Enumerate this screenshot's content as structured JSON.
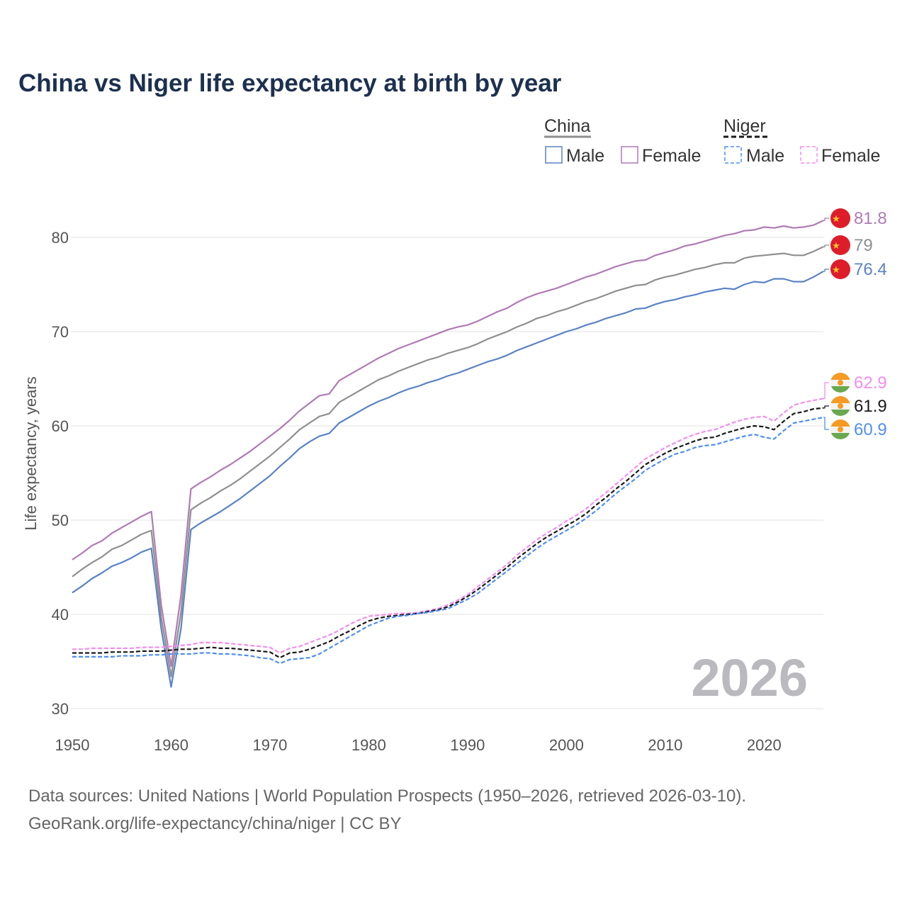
{
  "chart_data": {
    "type": "line",
    "title": "China vs Niger life expectancy at birth by year",
    "ylabel": "Life expectancy, years",
    "xlabel": "",
    "xlim": [
      1950,
      2026
    ],
    "ylim": [
      30,
      82
    ],
    "x_ticks": [
      1950,
      1960,
      1970,
      1980,
      1990,
      2000,
      2010,
      2020
    ],
    "y_ticks": [
      30,
      40,
      50,
      60,
      70,
      80
    ],
    "grid": true,
    "year_watermark": "2026",
    "legend": {
      "placement": "top-right",
      "groups": [
        {
          "name": "China",
          "items": [
            "Male",
            "Female"
          ]
        },
        {
          "name": "Niger",
          "items": [
            "Male",
            "Female"
          ]
        }
      ]
    },
    "x_start": 1950,
    "series": [
      {
        "name": "China Female",
        "color": "#b07ab5",
        "dashed": false,
        "end_label": "81.8",
        "flag": "china",
        "values": [
          45.8,
          46.5,
          47.3,
          47.8,
          48.6,
          49.2,
          49.8,
          50.4,
          50.9,
          41.0,
          34.5,
          42.0,
          53.3,
          54.0,
          54.6,
          55.3,
          55.9,
          56.6,
          57.3,
          58.1,
          58.9,
          59.7,
          60.6,
          61.6,
          62.4,
          63.2,
          63.4,
          64.8,
          65.4,
          66.0,
          66.6,
          67.2,
          67.7,
          68.2,
          68.6,
          69.0,
          69.4,
          69.8,
          70.2,
          70.5,
          70.7,
          71.1,
          71.6,
          72.1,
          72.5,
          73.1,
          73.6,
          74.0,
          74.3,
          74.6,
          75.0,
          75.4,
          75.8,
          76.1,
          76.5,
          76.9,
          77.2,
          77.5,
          77.6,
          78.1,
          78.4,
          78.7,
          79.1,
          79.3,
          79.6,
          79.9,
          80.2,
          80.4,
          80.7,
          80.8,
          81.1,
          81.0,
          81.2,
          81.0,
          81.1,
          81.3,
          81.8
        ]
      },
      {
        "name": "China",
        "color": "#8f8f8f",
        "dashed": false,
        "end_label": "79",
        "flag": "china",
        "values": [
          44.0,
          44.8,
          45.5,
          46.1,
          46.9,
          47.3,
          47.9,
          48.5,
          48.9,
          39.7,
          33.4,
          40.2,
          51.1,
          51.8,
          52.4,
          53.1,
          53.7,
          54.4,
          55.2,
          56.0,
          56.8,
          57.7,
          58.6,
          59.6,
          60.3,
          61.0,
          61.3,
          62.5,
          63.1,
          63.7,
          64.3,
          64.9,
          65.3,
          65.8,
          66.2,
          66.6,
          67.0,
          67.3,
          67.7,
          68.0,
          68.3,
          68.7,
          69.2,
          69.6,
          70.0,
          70.5,
          70.9,
          71.4,
          71.7,
          72.1,
          72.4,
          72.8,
          73.2,
          73.5,
          73.9,
          74.3,
          74.6,
          74.9,
          75.0,
          75.5,
          75.8,
          76.0,
          76.3,
          76.6,
          76.8,
          77.1,
          77.3,
          77.3,
          77.8,
          78.0,
          78.1,
          78.2,
          78.3,
          78.1,
          78.1,
          78.5,
          79.0
        ]
      },
      {
        "name": "China Male",
        "color": "#5a82c6",
        "dashed": false,
        "end_label": "76.4",
        "flag": "china",
        "values": [
          42.3,
          43.0,
          43.8,
          44.4,
          45.1,
          45.5,
          46.0,
          46.6,
          47.0,
          38.5,
          32.3,
          38.5,
          49.0,
          49.7,
          50.3,
          50.9,
          51.6,
          52.3,
          53.1,
          53.9,
          54.7,
          55.7,
          56.6,
          57.6,
          58.3,
          58.9,
          59.2,
          60.3,
          60.9,
          61.5,
          62.1,
          62.6,
          63.0,
          63.5,
          63.9,
          64.2,
          64.6,
          64.9,
          65.3,
          65.6,
          66.0,
          66.4,
          66.8,
          67.1,
          67.5,
          68.0,
          68.4,
          68.8,
          69.2,
          69.6,
          70.0,
          70.3,
          70.7,
          71.0,
          71.4,
          71.7,
          72.0,
          72.4,
          72.5,
          72.9,
          73.2,
          73.4,
          73.7,
          73.9,
          74.2,
          74.4,
          74.6,
          74.5,
          75.0,
          75.3,
          75.2,
          75.6,
          75.6,
          75.3,
          75.3,
          75.8,
          76.4
        ]
      },
      {
        "name": "Niger Female",
        "color": "#f58cf0",
        "dashed": true,
        "end_label": "62.9",
        "flag": "niger",
        "values": [
          36.3,
          36.3,
          36.4,
          36.4,
          36.4,
          36.4,
          36.4,
          36.5,
          36.5,
          36.5,
          36.6,
          36.7,
          36.8,
          37.0,
          37.0,
          37.0,
          36.9,
          36.8,
          36.7,
          36.6,
          36.5,
          35.9,
          36.4,
          36.6,
          37.0,
          37.4,
          37.8,
          38.3,
          38.9,
          39.4,
          39.8,
          39.9,
          40.0,
          40.1,
          40.1,
          40.2,
          40.4,
          40.6,
          41.0,
          41.5,
          42.1,
          42.9,
          43.7,
          44.5,
          45.3,
          46.3,
          47.1,
          47.9,
          48.6,
          49.2,
          49.9,
          50.5,
          51.2,
          52.1,
          52.9,
          53.8,
          54.7,
          55.6,
          56.5,
          57.1,
          57.7,
          58.2,
          58.7,
          59.1,
          59.4,
          59.6,
          60.0,
          60.4,
          60.7,
          60.9,
          61.0,
          60.5,
          61.4,
          62.2,
          62.5,
          62.7,
          62.9
        ]
      },
      {
        "name": "Niger",
        "color": "#1a1a1a",
        "dashed": true,
        "end_label": "61.9",
        "flag": "niger",
        "values": [
          35.9,
          35.9,
          35.9,
          35.9,
          36.0,
          36.0,
          36.0,
          36.1,
          36.1,
          36.1,
          36.2,
          36.3,
          36.3,
          36.4,
          36.5,
          36.4,
          36.4,
          36.3,
          36.2,
          36.1,
          36.0,
          35.4,
          35.9,
          36.0,
          36.3,
          36.7,
          37.1,
          37.7,
          38.2,
          38.8,
          39.3,
          39.6,
          39.8,
          39.9,
          40.0,
          40.1,
          40.3,
          40.5,
          40.8,
          41.3,
          41.9,
          42.6,
          43.4,
          44.2,
          45.0,
          45.9,
          46.7,
          47.5,
          48.2,
          48.8,
          49.4,
          50.0,
          50.7,
          51.6,
          52.4,
          53.3,
          54.1,
          55.0,
          55.9,
          56.5,
          57.1,
          57.6,
          58.0,
          58.4,
          58.7,
          58.8,
          59.2,
          59.5,
          59.8,
          60.0,
          59.9,
          59.6,
          60.5,
          61.3,
          61.5,
          61.8,
          61.9
        ]
      },
      {
        "name": "Niger Male",
        "color": "#4f8ff0",
        "dashed": true,
        "end_label": "60.9",
        "flag": "niger",
        "values": [
          35.5,
          35.5,
          35.5,
          35.5,
          35.5,
          35.6,
          35.6,
          35.6,
          35.7,
          35.7,
          35.8,
          35.8,
          35.8,
          35.9,
          35.9,
          35.8,
          35.8,
          35.7,
          35.6,
          35.4,
          35.3,
          34.8,
          35.2,
          35.3,
          35.4,
          35.8,
          36.4,
          37.0,
          37.6,
          38.2,
          38.8,
          39.2,
          39.6,
          39.8,
          39.9,
          40.1,
          40.2,
          40.4,
          40.6,
          41.1,
          41.6,
          42.2,
          43.0,
          43.8,
          44.6,
          45.4,
          46.2,
          47.0,
          47.7,
          48.3,
          48.9,
          49.5,
          50.2,
          51.0,
          51.9,
          52.8,
          53.6,
          54.4,
          55.3,
          55.9,
          56.5,
          57.0,
          57.3,
          57.7,
          57.9,
          58.0,
          58.3,
          58.6,
          58.9,
          59.1,
          58.8,
          58.6,
          59.5,
          60.3,
          60.5,
          60.7,
          60.9
        ]
      }
    ]
  },
  "source_line1": "Data sources: United Nations | World Population Prospects (1950–2026, retrieved 2026-03-10).",
  "source_line2": "GeoRank.org/life-expectancy/china/niger | CC BY"
}
